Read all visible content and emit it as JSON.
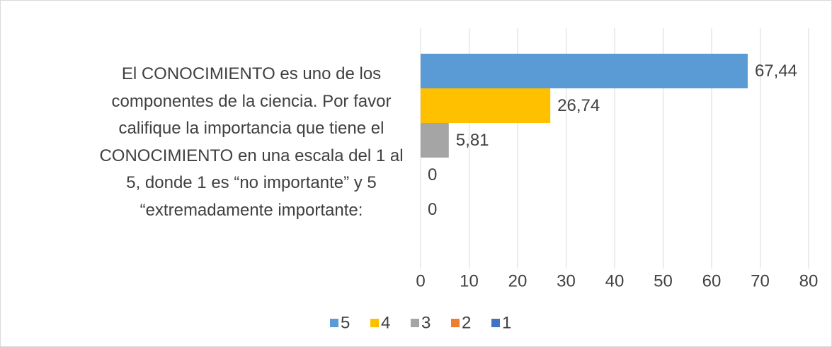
{
  "chart_data": {
    "type": "bar",
    "orientation": "horizontal",
    "categories": [
      "El CONOCIMIENTO es uno de los componentes de la ciencia. Por favor califique la importancia que tiene el CONOCIMIENTO en una escala del 1 al 5, donde 1 es “no importante” y 5 “extremadamente importante:"
    ],
    "series": [
      {
        "name": "5",
        "color": "#5b9bd5",
        "values": [
          67.44
        ],
        "value_labels": [
          "67,44"
        ]
      },
      {
        "name": "4",
        "color": "#ffc000",
        "values": [
          26.74
        ],
        "value_labels": [
          "26,74"
        ]
      },
      {
        "name": "3",
        "color": "#a5a5a5",
        "values": [
          5.81
        ],
        "value_labels": [
          "5,81"
        ]
      },
      {
        "name": "2",
        "color": "#ed7d31",
        "values": [
          0
        ],
        "value_labels": [
          "0"
        ]
      },
      {
        "name": "1",
        "color": "#4472c4",
        "values": [
          0
        ],
        "value_labels": [
          "0"
        ]
      }
    ],
    "xlim": [
      0,
      80
    ],
    "xticks": [
      0,
      10,
      20,
      30,
      40,
      50,
      60,
      70,
      80
    ],
    "grid": true,
    "legend": "bottom"
  }
}
